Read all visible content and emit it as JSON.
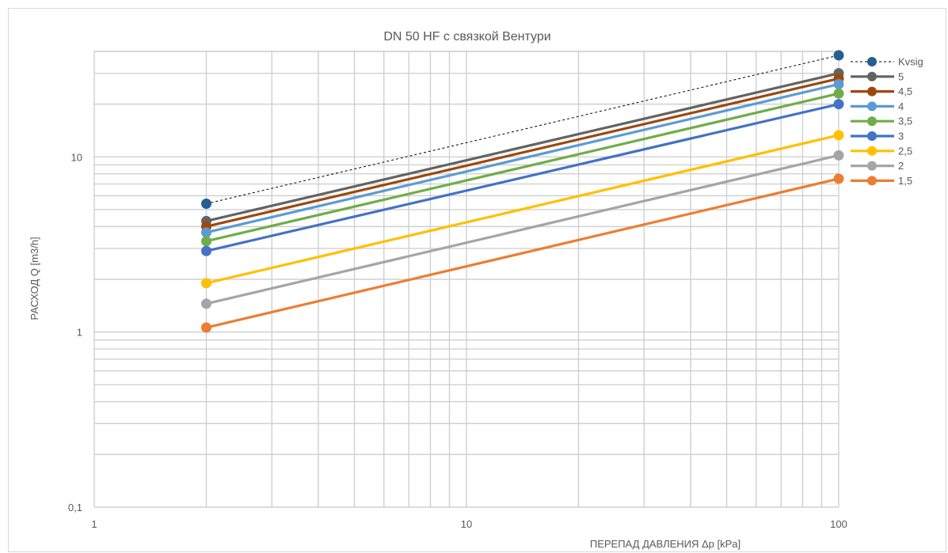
{
  "chart_data": {
    "type": "line",
    "title": "DN 50 HF с связкой Вентури",
    "xlabel": "ПЕРЕПАД ДАВЛЕНИЯ  Δp  [kPa]",
    "ylabel": "РАСХОД Q  [m3/h]",
    "xscale": "log",
    "yscale": "log",
    "xlim": [
      1,
      100
    ],
    "ylim": [
      0.1,
      40
    ],
    "x_tick_labels": [
      "1",
      "10",
      "100"
    ],
    "y_tick_labels": [
      "0,1",
      "1",
      "10"
    ],
    "grid": true,
    "legend_position": "right",
    "x": [
      2,
      100
    ],
    "series": [
      {
        "name": "Kvsig",
        "values": [
          5.4,
          38
        ],
        "color": "#255e91",
        "dashed": true
      },
      {
        "name": "5",
        "values": [
          4.3,
          30
        ],
        "color": "#636363",
        "dashed": false
      },
      {
        "name": "4,5",
        "values": [
          4.0,
          28
        ],
        "color": "#9e480e",
        "dashed": false
      },
      {
        "name": "4",
        "values": [
          3.7,
          26
        ],
        "color": "#5b9bd5",
        "dashed": false
      },
      {
        "name": "3,5",
        "values": [
          3.3,
          23
        ],
        "color": "#70ad47",
        "dashed": false
      },
      {
        "name": "3",
        "values": [
          2.9,
          20
        ],
        "color": "#4472c4",
        "dashed": false
      },
      {
        "name": "2,5",
        "values": [
          1.9,
          13.3
        ],
        "color": "#ffc000",
        "dashed": false
      },
      {
        "name": "2",
        "values": [
          1.45,
          10.2
        ],
        "color": "#a5a5a5",
        "dashed": false
      },
      {
        "name": "1,5",
        "values": [
          1.06,
          7.5
        ],
        "color": "#ed7d31",
        "dashed": false
      }
    ]
  }
}
